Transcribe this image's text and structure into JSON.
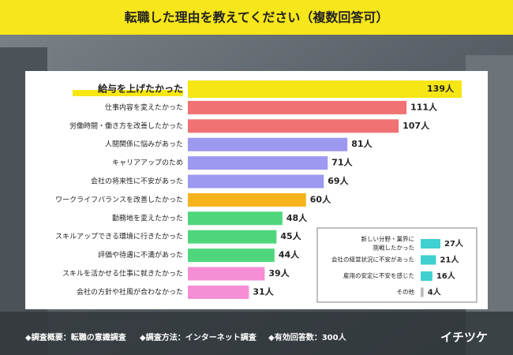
{
  "header": {
    "title": "転職した理由を教えてください（複数回答可）"
  },
  "chart_data": [
    {
      "type": "bar",
      "orientation": "horizontal",
      "categories": [
        "給与を上げたかった",
        "仕事内容を変えたかった",
        "労働時間・働き方を改善したかった",
        "人間関係に悩みがあった",
        "キャリアアップのため",
        "会社の将来性に不安があった",
        "ワークライフバランスを改善したかった",
        "勤務地を変えたかった",
        "スキルアップできる環境に行きたかった",
        "評価や待遇に不満があった",
        "スキルを活かせる仕事に就きたかった",
        "会社の方針や社風が合わなかった"
      ],
      "values": [
        139,
        111,
        107,
        81,
        71,
        69,
        60,
        48,
        45,
        44,
        39,
        31
      ],
      "value_labels": [
        "139人",
        "111人",
        "107人",
        "81人",
        "71人",
        "69人",
        "60人",
        "48人",
        "45人",
        "44人",
        "39人",
        "31人"
      ],
      "colors": [
        "#f5e614",
        "#f07272",
        "#f07272",
        "#9d98f0",
        "#9d98f0",
        "#9d98f0",
        "#f6b31c",
        "#4fd67c",
        "#4fd67c",
        "#4fd67c",
        "#f58ed4",
        "#f58ed4"
      ]
    },
    {
      "type": "bar",
      "orientation": "horizontal",
      "categories": [
        [
          "新しい分野・業界に",
          "挑戦したかった"
        ],
        [
          "会社の経営状況に不安があった"
        ],
        [
          "雇用の安定に不安を感じた"
        ],
        [
          "その他"
        ]
      ],
      "values": [
        27,
        21,
        16,
        4
      ],
      "value_labels": [
        "27人",
        "21人",
        "16人",
        "4人"
      ],
      "colors": [
        "#3fd0d0",
        "#3fd0d0",
        "#3fd0d0",
        "#bbbbbb"
      ]
    }
  ],
  "footer": {
    "notes": [
      "◆調査概要：転職の意識調査",
      "◆調査方法：インターネット調査",
      "◆有効回答数：300人"
    ],
    "logo": "イチツケ"
  }
}
